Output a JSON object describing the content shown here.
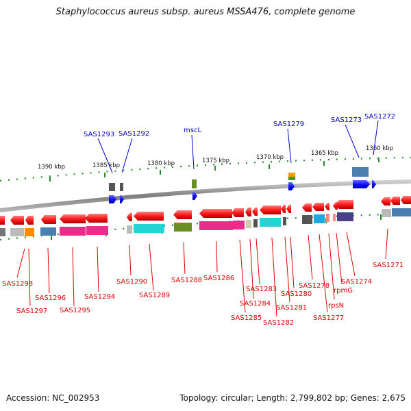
{
  "title": "Staphylococcus aureus subsp. aureus MSSA476, complete genome",
  "accession": "Accession: NC_002953",
  "topology": "Topology: circular; Length: 2,799,802 bp; Genes: 2,675",
  "colors": {
    "forward_label": "#0000cc",
    "reverse_label": "#dd0000",
    "backbone": "#888888",
    "tick": "#2a8a2a"
  },
  "scale_labels": [
    {
      "id": "kbp-1390",
      "text": "1390 kbp"
    },
    {
      "id": "kbp-1385",
      "text": "1385 kbp"
    },
    {
      "id": "kbp-1380",
      "text": "1380 kbp"
    },
    {
      "id": "kbp-1375",
      "text": "1375 kbp"
    },
    {
      "id": "kbp-1370",
      "text": "1370 kbp"
    },
    {
      "id": "kbp-1365",
      "text": "1365 kbp"
    },
    {
      "id": "kbp-1360",
      "text": "1360 kbp"
    }
  ],
  "forward_genes": [
    {
      "id": "sas1293",
      "label": "SAS1293"
    },
    {
      "id": "sas1292",
      "label": "SAS1292"
    },
    {
      "id": "mscl",
      "label": "mscL"
    },
    {
      "id": "sas1279",
      "label": "SAS1279"
    },
    {
      "id": "sas1273",
      "label": "SAS1273"
    },
    {
      "id": "sas1272",
      "label": "SAS1272"
    }
  ],
  "reverse_genes": [
    {
      "id": "sas1298",
      "label": "SAS1298"
    },
    {
      "id": "sas1297",
      "label": "SAS1297"
    },
    {
      "id": "sas1296",
      "label": "SAS1296"
    },
    {
      "id": "sas1295",
      "label": "SAS1295"
    },
    {
      "id": "sas1294",
      "label": "SAS1294"
    },
    {
      "id": "sas1290",
      "label": "SAS1290"
    },
    {
      "id": "sas1289",
      "label": "SAS1289"
    },
    {
      "id": "sas1288",
      "label": "SAS1288"
    },
    {
      "id": "sas1286",
      "label": "SAS1286"
    },
    {
      "id": "sas1285",
      "label": "SAS1285"
    },
    {
      "id": "sas1284",
      "label": "SAS1284"
    },
    {
      "id": "sas1283",
      "label": "SAS1283"
    },
    {
      "id": "sas1282",
      "label": "SAS1282"
    },
    {
      "id": "sas1281",
      "label": "SAS1281"
    },
    {
      "id": "sas1280",
      "label": "SAS1280"
    },
    {
      "id": "sas1278",
      "label": "SAS1278"
    },
    {
      "id": "sas1277",
      "label": "SAS1277"
    },
    {
      "id": "rpsn",
      "label": "rpsN"
    },
    {
      "id": "rpmg",
      "label": "rpmG"
    },
    {
      "id": "sas1274",
      "label": "SAS1274"
    },
    {
      "id": "sas1271",
      "label": "SAS1271"
    }
  ]
}
